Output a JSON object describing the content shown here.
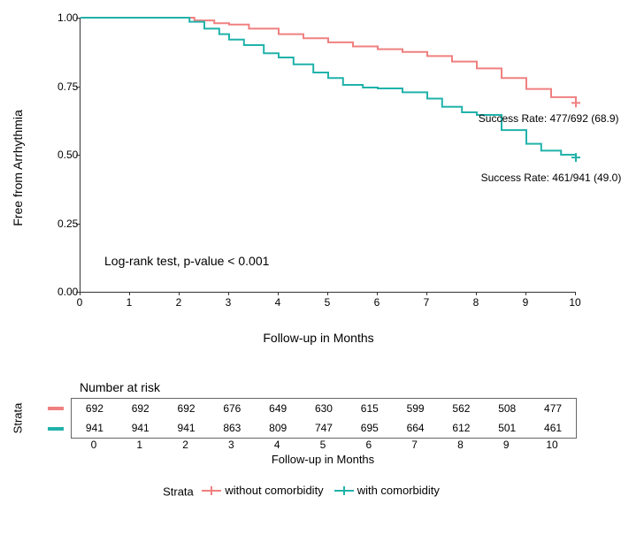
{
  "km_chart": {
    "type": "kaplan-meier",
    "y_label": "Free from Arrhythmia",
    "x_label": "Follow-up in Months",
    "ylim": [
      0,
      1
    ],
    "xlim": [
      0,
      10
    ],
    "y_ticks": [
      0.0,
      0.25,
      0.5,
      0.75,
      1.0
    ],
    "y_tick_labels": [
      "0.00",
      "0.25",
      "0.50",
      "0.75",
      "1.00"
    ],
    "x_ticks": [
      0,
      1,
      2,
      3,
      4,
      5,
      6,
      7,
      8,
      9,
      10
    ],
    "background_color": "#ffffff",
    "axis_color": "#333333",
    "line_width": 2,
    "series": [
      {
        "name": "without comorbidity",
        "color": "#f08080",
        "points": [
          [
            0,
            1.0
          ],
          [
            1,
            1.0
          ],
          [
            2,
            1.0
          ],
          [
            2.3,
            0.99
          ],
          [
            2.7,
            0.98
          ],
          [
            3,
            0.975
          ],
          [
            3.4,
            0.96
          ],
          [
            4,
            0.94
          ],
          [
            4.5,
            0.925
          ],
          [
            5,
            0.91
          ],
          [
            5.5,
            0.895
          ],
          [
            6,
            0.885
          ],
          [
            6.5,
            0.875
          ],
          [
            7,
            0.86
          ],
          [
            7.5,
            0.84
          ],
          [
            8,
            0.815
          ],
          [
            8.5,
            0.78
          ],
          [
            9,
            0.74
          ],
          [
            9.5,
            0.71
          ],
          [
            10,
            0.689
          ]
        ],
        "end_annotation": "Success Rate: 477/692 (68.9)",
        "end_annotation_xy": [
          8.05,
          0.655
        ]
      },
      {
        "name": "with comorbidity",
        "color": "#20b2aa",
        "points": [
          [
            0,
            1.0
          ],
          [
            1,
            1.0
          ],
          [
            2,
            1.0
          ],
          [
            2.2,
            0.985
          ],
          [
            2.5,
            0.96
          ],
          [
            2.8,
            0.94
          ],
          [
            3,
            0.92
          ],
          [
            3.3,
            0.9
          ],
          [
            3.7,
            0.87
          ],
          [
            4,
            0.855
          ],
          [
            4.3,
            0.83
          ],
          [
            4.7,
            0.8
          ],
          [
            5,
            0.78
          ],
          [
            5.3,
            0.755
          ],
          [
            5.7,
            0.745
          ],
          [
            6,
            0.742
          ],
          [
            6.5,
            0.728
          ],
          [
            7,
            0.705
          ],
          [
            7.3,
            0.675
          ],
          [
            7.7,
            0.655
          ],
          [
            8,
            0.645
          ],
          [
            8.5,
            0.59
          ],
          [
            9,
            0.54
          ],
          [
            9.3,
            0.515
          ],
          [
            9.7,
            0.5
          ],
          [
            10,
            0.49
          ]
        ],
        "end_annotation": "Success Rate: 461/941 (49.0)",
        "end_annotation_xy": [
          8.1,
          0.44
        ]
      }
    ],
    "logrank_text": "Log-rank test, p-value < 0.001",
    "logrank_xy": [
      0.5,
      0.14
    ]
  },
  "risk_table": {
    "title": "Number at risk",
    "strata_axis_label": "Strata",
    "x_label": "Follow-up in Months",
    "x_ticks": [
      0,
      1,
      2,
      3,
      4,
      5,
      6,
      7,
      8,
      9,
      10
    ],
    "rows": [
      {
        "color": "#f08080",
        "values": [
          692,
          692,
          692,
          676,
          649,
          630,
          615,
          599,
          562,
          508,
          477
        ]
      },
      {
        "color": "#20b2aa",
        "values": [
          941,
          941,
          941,
          863,
          809,
          747,
          695,
          664,
          612,
          501,
          461
        ]
      }
    ]
  },
  "legend": {
    "title": "Strata",
    "items": [
      {
        "color": "#f08080",
        "label": "without comorbidity"
      },
      {
        "color": "#20b2aa",
        "label": "with comorbidity"
      }
    ]
  }
}
